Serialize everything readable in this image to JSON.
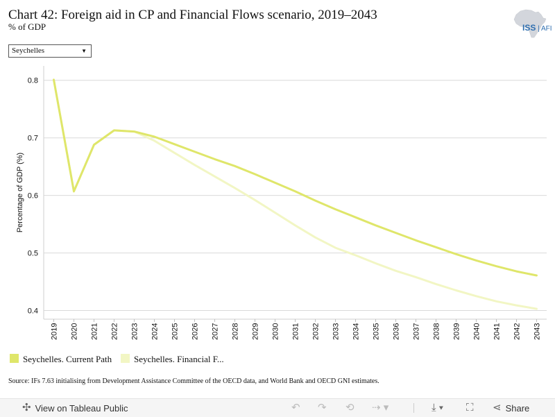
{
  "header": {
    "title": "Chart 42: Foreign aid in CP and Financial Flows scenario, 2019–2043",
    "subtitle": "% of GDP",
    "logo_text": "ISS",
    "logo_sub": "AFI"
  },
  "filter": {
    "selected": "Seychelles"
  },
  "colors": {
    "current_path": "#dfe66a",
    "financial_flows": "#f2f6c4",
    "grid": "#d9d9d9",
    "axis_text": "#111111"
  },
  "chart_data": {
    "type": "line",
    "title": "Chart 42: Foreign aid in CP and Financial Flows scenario, 2019–2043",
    "subtitle": "% of GDP",
    "xlabel": "",
    "ylabel": "Percentage of GDP (%)",
    "ylim": [
      0.385,
      0.825
    ],
    "yticks": [
      0.4,
      0.5,
      0.6,
      0.7,
      0.8
    ],
    "grid": true,
    "legend_position": "bottom-left",
    "x": [
      "2019",
      "2020",
      "2021",
      "2022",
      "2023",
      "2024",
      "2025",
      "2026",
      "2027",
      "2028",
      "2029",
      "2030",
      "2031",
      "2032",
      "2033",
      "2034",
      "2035",
      "2036",
      "2037",
      "2038",
      "2039",
      "2040",
      "2041",
      "2042",
      "2043"
    ],
    "series": [
      {
        "name": "Seychelles. Current Path",
        "color": "#dfe66a",
        "values": [
          0.801,
          0.607,
          0.688,
          0.713,
          0.711,
          0.702,
          0.689,
          0.676,
          0.663,
          0.651,
          0.637,
          0.622,
          0.607,
          0.591,
          0.576,
          0.562,
          0.548,
          0.535,
          0.522,
          0.51,
          0.498,
          0.487,
          0.477,
          0.468,
          0.461
        ]
      },
      {
        "name": "Seychelles. Financial F...",
        "color": "#f2f6c4",
        "values": [
          0.801,
          0.607,
          0.688,
          0.713,
          0.711,
          0.695,
          0.674,
          0.653,
          0.633,
          0.613,
          0.592,
          0.57,
          0.548,
          0.527,
          0.509,
          0.496,
          0.482,
          0.469,
          0.458,
          0.446,
          0.435,
          0.425,
          0.416,
          0.409,
          0.403
        ]
      }
    ]
  },
  "source": "Source: IFs 7.63 initialising from Development Assistance Committee of the OECD data, and World Bank and OECD GNI estimates.",
  "toolbar": {
    "view_label": "View on Tableau Public",
    "share_label": "Share",
    "icons": [
      "tableau-icon",
      "undo-icon",
      "redo-icon",
      "revert-icon",
      "refresh-icon",
      "download-icon",
      "fullscreen-icon",
      "share-icon"
    ]
  }
}
